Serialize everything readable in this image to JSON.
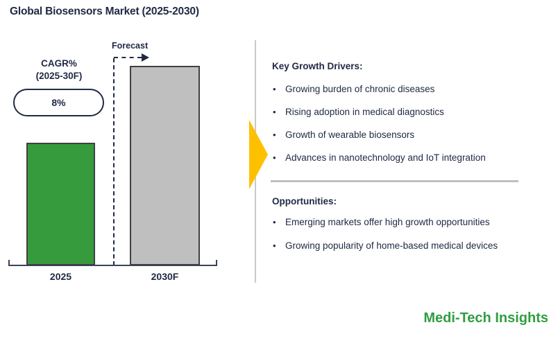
{
  "title": "Global Biosensors Market (2025-2030)",
  "chart_data": {
    "type": "bar",
    "title": "Global Biosensors Market (2025-2030)",
    "categories": [
      "2025",
      "2030F"
    ],
    "values_relative_height_pct": [
      61,
      100
    ],
    "value_labels_shown": false,
    "forecast_label": "Forecast",
    "cagr_label": "CAGR%",
    "cagr_period": "(2025-30F)",
    "cagr_value": "8%",
    "cagr_2025_30f_pct": 8,
    "xlabel": "",
    "ylabel": "",
    "grid": false,
    "legend": false,
    "series_colors": [
      "#369B3D",
      "#BFBFBF"
    ],
    "bar_border_color": "#404040",
    "annotations": [
      "Forecast (dashed arrow over 2030F bar)",
      "CAGR% (2025-30F): 8% in oval badge"
    ]
  },
  "panel": {
    "drivers": {
      "heading": "Key Growth Drivers:",
      "items": [
        "Growing burden of chronic diseases",
        "Rising adoption in medical diagnostics",
        "Growth of wearable biosensors",
        "Advances in nanotechnology and IoT integration"
      ]
    },
    "opportunities": {
      "heading": "Opportunities:",
      "items": [
        "Emerging markets offer high growth opportunities",
        "Growing popularity of home-based medical devices"
      ]
    }
  },
  "branding": {
    "logo_text": "Medi-Tech Insights",
    "logo_color": "#2F9E41"
  },
  "colors": {
    "text_navy": "#202A44",
    "accent_gold": "#FFC000",
    "divider_gray": "#BFBFBF",
    "panel_line_gray": "#C9C9C9"
  }
}
